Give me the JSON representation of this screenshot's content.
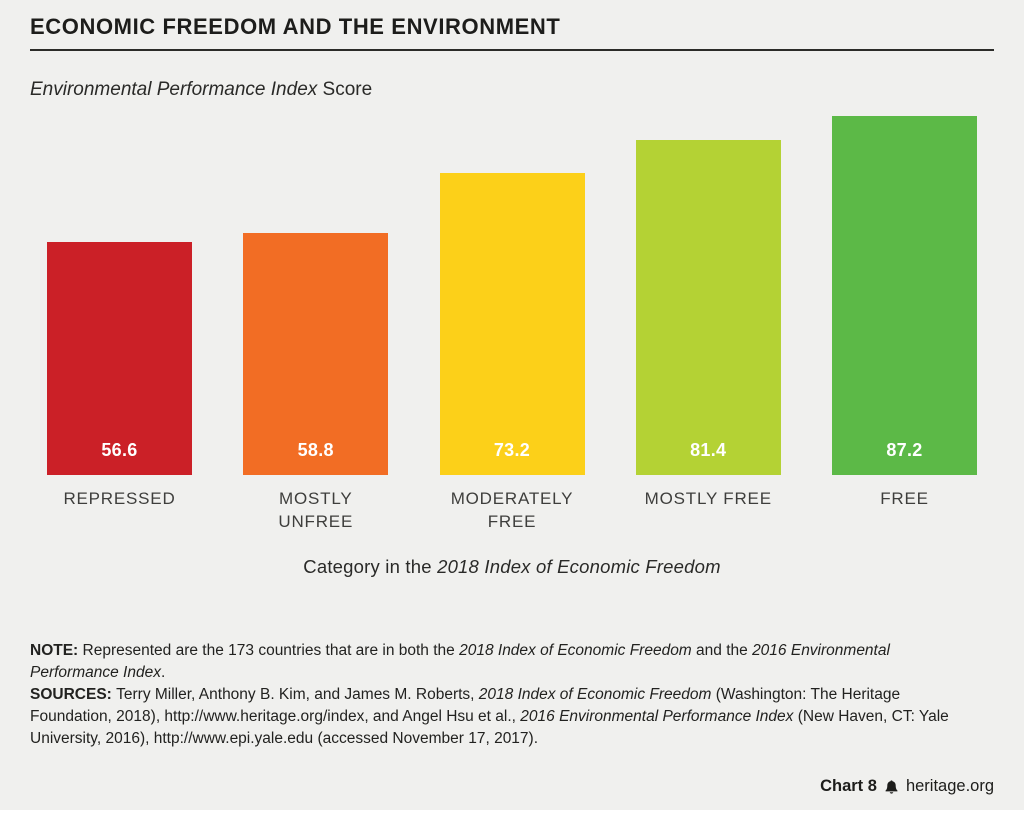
{
  "header": {
    "title": "ECONOMIC FREEDOM AND THE ENVIRONMENT",
    "subtitle_segments": [
      {
        "text": "Environmental Performance Index",
        "style": "italic"
      },
      {
        "text": " Score",
        "style": "normal"
      }
    ]
  },
  "chart_data": {
    "type": "bar",
    "title": "ECONOMIC FREEDOM AND THE ENVIRONMENT",
    "ylabel": "Environmental Performance Index Score",
    "categories": [
      "REPRESSED",
      "MOSTLY UNFREE",
      "MODERATELY FREE",
      "MOSTLY FREE",
      "FREE"
    ],
    "values": [
      56.6,
      58.8,
      73.2,
      81.4,
      87.2
    ],
    "bar_colors": [
      "#cb2027",
      "#f26d24",
      "#fcd019",
      "#b4d234",
      "#5cb947"
    ],
    "value_label_color": "#ffffff",
    "ylim": [
      0,
      100
    ],
    "grid": false,
    "legend": "none",
    "xlabel_segments": [
      {
        "text": "Category in the ",
        "style": "normal"
      },
      {
        "text": "2018 Index of Economic Freedom",
        "style": "italic"
      }
    ]
  },
  "notes": {
    "note_segments": [
      {
        "text": "NOTE: ",
        "style": "bold"
      },
      {
        "text": "Represented are the 173 countries that are in both the ",
        "style": "normal"
      },
      {
        "text": "2018 Index of Economic Freedom",
        "style": "italic"
      },
      {
        "text": " and the ",
        "style": "normal"
      },
      {
        "text": "2016 Environmental Performance Index",
        "style": "italic"
      },
      {
        "text": ".",
        "style": "normal"
      }
    ],
    "sources_segments": [
      {
        "text": "SOURCES: ",
        "style": "bold"
      },
      {
        "text": "Terry Miller, Anthony B. Kim, and James M. Roberts, ",
        "style": "normal"
      },
      {
        "text": "2018 Index of Economic Freedom",
        "style": "italic"
      },
      {
        "text": " (Washington: The Heritage Foundation, 2018), http://www.heritage.org/index, and Angel Hsu et al., ",
        "style": "normal"
      },
      {
        "text": "2016 Environmental Performance Index",
        "style": "italic"
      },
      {
        "text": " (New Haven, CT: Yale University, 2016), http://www.epi.yale.edu (accessed November 17, 2017).",
        "style": "normal"
      }
    ]
  },
  "footer": {
    "chart_label": "Chart 8",
    "site": "heritage.org",
    "logo_icon": "liberty-bell-icon"
  }
}
